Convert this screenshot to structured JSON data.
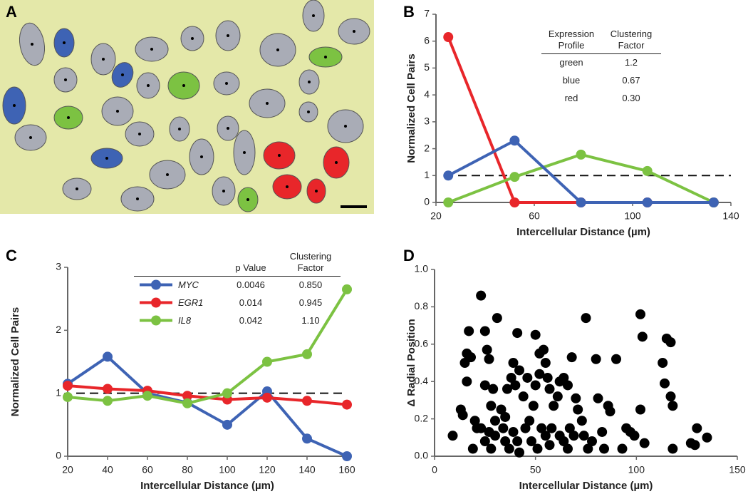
{
  "panel_a": {
    "label": "A"
  },
  "chart_data": [
    {
      "type": "line",
      "panel": "B",
      "x_label": "Intercellular Distance (µm)",
      "y_label": "Normalized Cell Pairs",
      "x": [
        25,
        52,
        79,
        106,
        133
      ],
      "series": [
        {
          "name": "red",
          "color": "#e8262a",
          "values": [
            6.15,
            0,
            0,
            0,
            0
          ]
        },
        {
          "name": "green",
          "color": "#7cc242",
          "values": [
            0,
            0.95,
            1.78,
            1.17,
            0
          ]
        },
        {
          "name": "blue",
          "color": "#3e63b4",
          "values": [
            1,
            2.3,
            0,
            0,
            0
          ]
        }
      ],
      "reference_line": 1,
      "xlim": [
        20,
        140
      ],
      "xticks": [
        20,
        60,
        100,
        140
      ],
      "ylim": [
        0,
        7
      ],
      "yticks": [
        0,
        1,
        2,
        3,
        4,
        5,
        6,
        7
      ],
      "table": {
        "header": [
          "Expression Profile",
          "Clustering Factor"
        ],
        "rows": [
          [
            "green",
            "1.2"
          ],
          [
            "blue",
            "0.67"
          ],
          [
            "red",
            "0.30"
          ]
        ]
      }
    },
    {
      "type": "line",
      "panel": "C",
      "x_label": "Intercellular Distance (µm)",
      "y_label": "Normalized Cell Pairs",
      "x": [
        20,
        40,
        60,
        80,
        100,
        120,
        140,
        160
      ],
      "series": [
        {
          "name": "MYC",
          "color": "#3e63b4",
          "values": [
            1.15,
            1.58,
            1.0,
            0.85,
            0.5,
            1.03,
            0.28,
            0
          ]
        },
        {
          "name": "EGR1",
          "color": "#e8262a",
          "values": [
            1.12,
            1.07,
            1.04,
            0.96,
            0.9,
            0.93,
            0.88,
            0.82
          ]
        },
        {
          "name": "IL8",
          "color": "#7cc242",
          "values": [
            0.94,
            0.88,
            0.96,
            0.84,
            1.0,
            1.5,
            1.62,
            2.65
          ]
        }
      ],
      "reference_line": 1,
      "xlim": [
        20,
        160
      ],
      "xticks": [
        20,
        40,
        60,
        80,
        100,
        120,
        140,
        160
      ],
      "ylim": [
        0,
        3
      ],
      "yticks": [
        0,
        1,
        2,
        3
      ],
      "table": {
        "header": [
          "p Value",
          "Clustering Factor"
        ],
        "rows": [
          [
            "0.0046",
            "0.850"
          ],
          [
            "0.014",
            "0.945"
          ],
          [
            "0.042",
            "1.10"
          ]
        ]
      }
    },
    {
      "type": "scatter",
      "panel": "D",
      "x_label": "Intercellular Distance (µm)",
      "y_label": "Δ Radial Position",
      "color": "#000000",
      "x": [
        9,
        13,
        14,
        23,
        17,
        16,
        18,
        15,
        16,
        20,
        21,
        19,
        25,
        26,
        27,
        25,
        29,
        31,
        28,
        33,
        30,
        23,
        27,
        30,
        25,
        28,
        34,
        35,
        36,
        38,
        40,
        39,
        41,
        42,
        44,
        46,
        35,
        37,
        39,
        41,
        42,
        45,
        48,
        47,
        49,
        50,
        52,
        52,
        50,
        54,
        55,
        56,
        57,
        53,
        55,
        57,
        51,
        58,
        59,
        61,
        62,
        64,
        66,
        68,
        62,
        64,
        66,
        67,
        69,
        70,
        71,
        73,
        75,
        74,
        76,
        78,
        80,
        81,
        83,
        84,
        86,
        87,
        90,
        93,
        95,
        97,
        99,
        102,
        102,
        103,
        104,
        113,
        114,
        115,
        117,
        117,
        118,
        118,
        127,
        129,
        135,
        130
      ],
      "values": [
        0.11,
        0.25,
        0.22,
        0.86,
        0.67,
        0.55,
        0.53,
        0.5,
        0.4,
        0.19,
        0.15,
        0.04,
        0.67,
        0.57,
        0.52,
        0.38,
        0.36,
        0.74,
        0.27,
        0.25,
        0.19,
        0.15,
        0.13,
        0.11,
        0.08,
        0.04,
        0.15,
        0.21,
        0.36,
        0.42,
        0.38,
        0.5,
        0.66,
        0.46,
        0.32,
        0.42,
        0.08,
        0.04,
        0.13,
        0.08,
        0.02,
        0.15,
        0.08,
        0.19,
        0.27,
        0.38,
        0.44,
        0.55,
        0.65,
        0.57,
        0.5,
        0.42,
        0.36,
        0.15,
        0.11,
        0.06,
        0.04,
        0.15,
        0.27,
        0.32,
        0.4,
        0.42,
        0.38,
        0.53,
        0.11,
        0.08,
        0.04,
        0.15,
        0.11,
        0.31,
        0.25,
        0.19,
        0.74,
        0.11,
        0.04,
        0.08,
        0.52,
        0.31,
        0.13,
        0.04,
        0.27,
        0.24,
        0.52,
        0.04,
        0.15,
        0.13,
        0.11,
        0.25,
        0.76,
        0.64,
        0.07,
        0.5,
        0.39,
        0.63,
        0.61,
        0.32,
        0.27,
        0.04,
        0.07,
        0.06,
        0.1,
        0.15
      ],
      "xlim": [
        0,
        150
      ],
      "xticks": [
        0,
        50,
        100,
        150
      ],
      "ylim": [
        0,
        1
      ],
      "yticks": [
        {
          "value": 0,
          "label": "0.0"
        },
        {
          "value": 0.2,
          "label": "0.2"
        },
        {
          "value": 0.4,
          "label": "0.4"
        },
        {
          "value": 0.6,
          "label": "0.6"
        },
        {
          "value": 0.8,
          "label": "0.8"
        },
        {
          "value": 1,
          "label": "1.0"
        }
      ]
    }
  ]
}
